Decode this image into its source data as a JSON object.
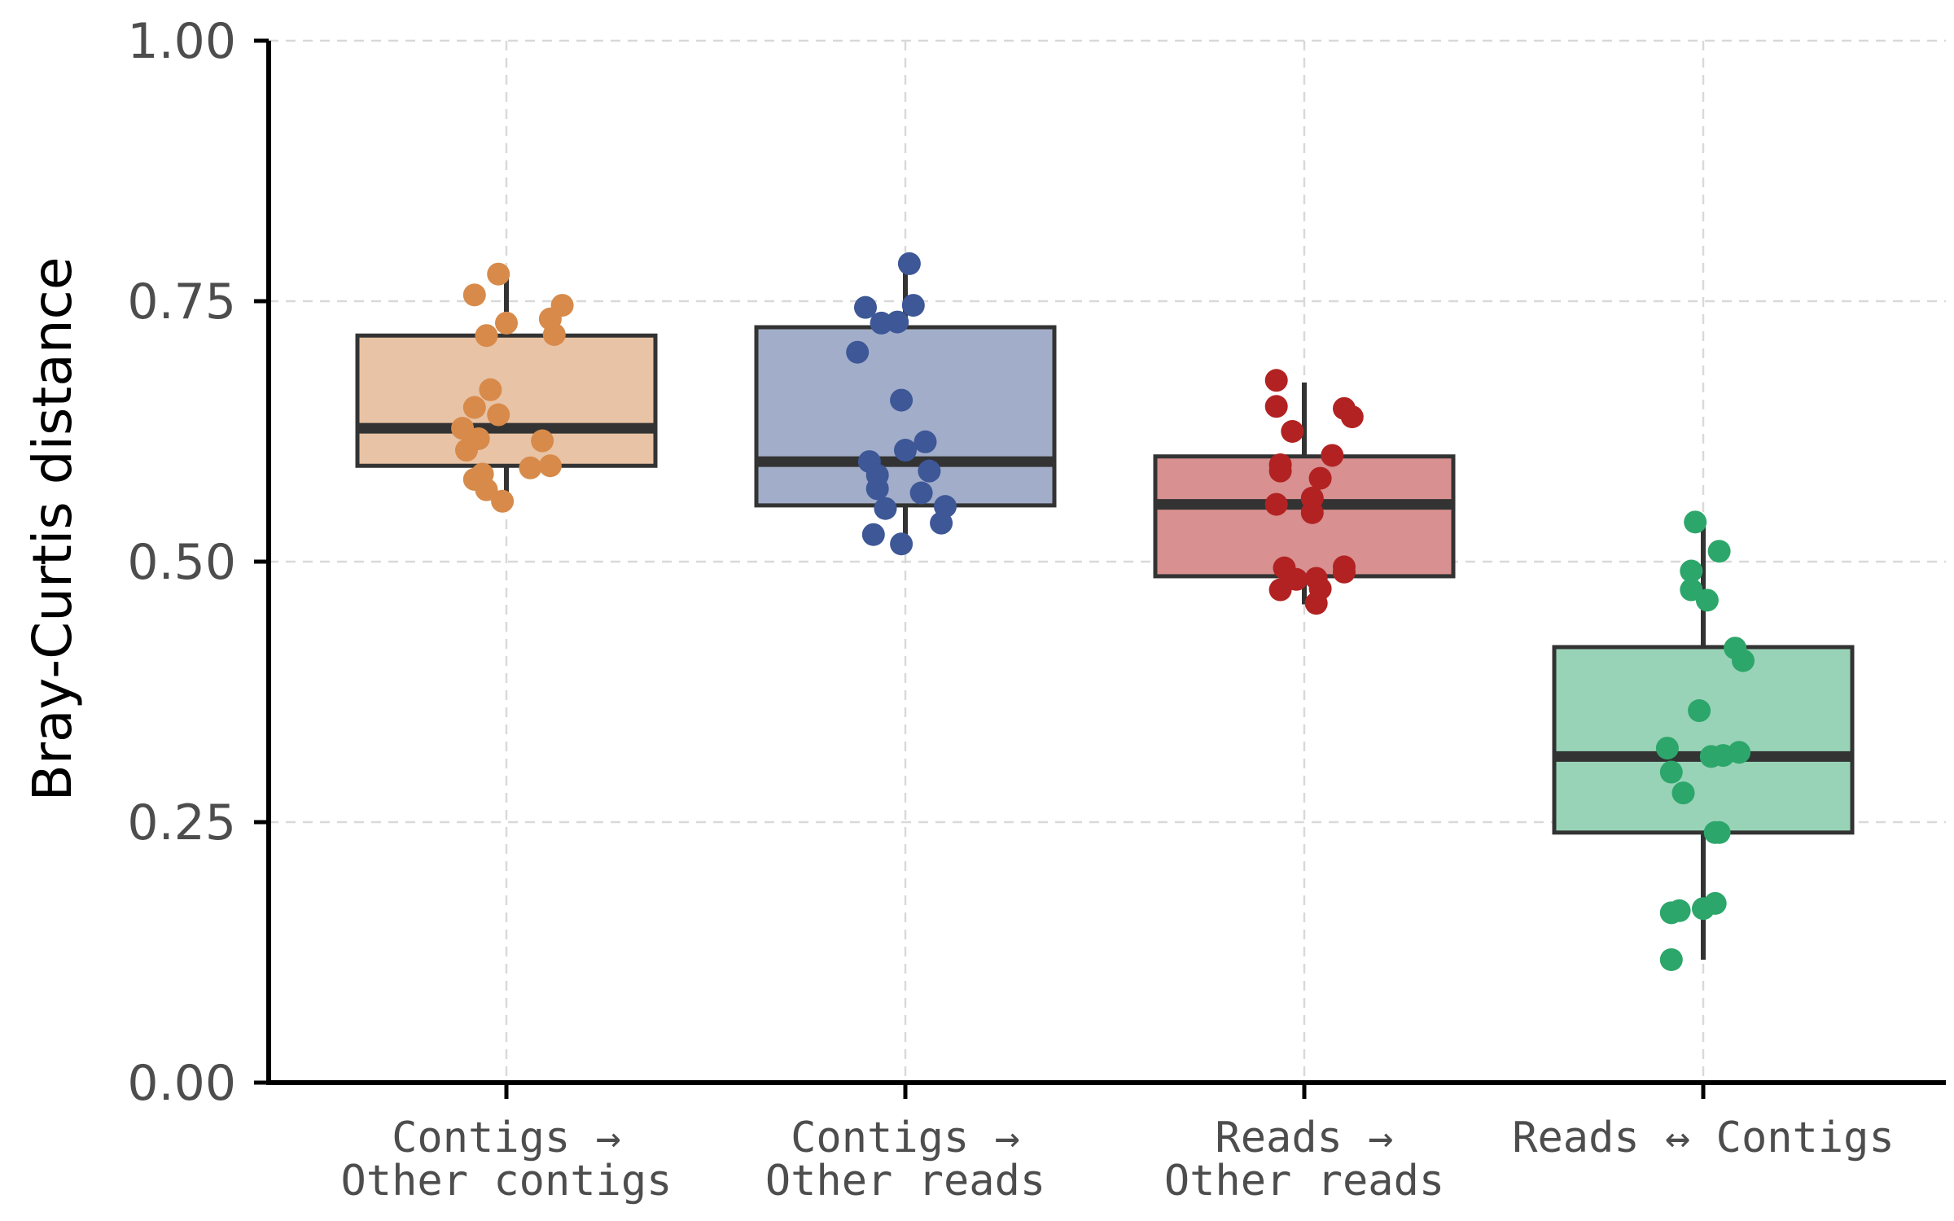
{
  "chart_data": {
    "type": "box",
    "ylabel": "Bray-Curtis distance",
    "xlabel": "",
    "ylim": [
      0,
      1
    ],
    "yticks": [
      "0.00",
      "0.25",
      "0.50",
      "0.75",
      "1.00"
    ],
    "grid": true,
    "categories": [
      {
        "line1": "Contigs →",
        "line2": "Other contigs"
      },
      {
        "line1": "Contigs →",
        "line2": "Other reads"
      },
      {
        "line1": "Reads →",
        "line2": "Other reads"
      },
      {
        "line1": "Reads ↔ Contigs",
        "line2": ""
      }
    ],
    "boxes": [
      {
        "fill": "#e8c3a5",
        "point_color": "#d78a4a",
        "q1": 0.592,
        "median": 0.628,
        "q3": 0.717,
        "whisker_low": 0.557,
        "whisker_high": 0.775,
        "points": [
          [
            -0.02,
            0.776
          ],
          [
            -0.08,
            0.756
          ],
          [
            0.14,
            0.746
          ],
          [
            0.11,
            0.733
          ],
          [
            0.0,
            0.729
          ],
          [
            0.12,
            0.718
          ],
          [
            -0.05,
            0.717
          ],
          [
            -0.04,
            0.665
          ],
          [
            -0.08,
            0.648
          ],
          [
            -0.02,
            0.641
          ],
          [
            -0.11,
            0.628
          ],
          [
            -0.07,
            0.618
          ],
          [
            0.09,
            0.616
          ],
          [
            -0.1,
            0.607
          ],
          [
            0.11,
            0.592
          ],
          [
            0.06,
            0.59
          ],
          [
            -0.06,
            0.584
          ],
          [
            -0.08,
            0.579
          ],
          [
            -0.05,
            0.569
          ],
          [
            -0.01,
            0.558
          ]
        ]
      },
      {
        "fill": "#a2adc9",
        "point_color": "#3d5797",
        "q1": 0.554,
        "median": 0.596,
        "q3": 0.725,
        "whisker_low": 0.516,
        "whisker_high": 0.785,
        "points": [
          [
            0.01,
            0.786
          ],
          [
            -0.1,
            0.744
          ],
          [
            0.02,
            0.746
          ],
          [
            -0.06,
            0.729
          ],
          [
            -0.02,
            0.73
          ],
          [
            -0.12,
            0.701
          ],
          [
            -0.01,
            0.655
          ],
          [
            0.05,
            0.615
          ],
          [
            0.0,
            0.607
          ],
          [
            -0.09,
            0.596
          ],
          [
            -0.07,
            0.583
          ],
          [
            0.06,
            0.587
          ],
          [
            -0.07,
            0.57
          ],
          [
            0.04,
            0.566
          ],
          [
            0.1,
            0.553
          ],
          [
            -0.05,
            0.551
          ],
          [
            0.09,
            0.537
          ],
          [
            -0.08,
            0.526
          ],
          [
            -0.01,
            0.517
          ]
        ]
      },
      {
        "fill": "#d89090",
        "point_color": "#b22222",
        "q1": 0.486,
        "median": 0.555,
        "q3": 0.601,
        "whisker_low": 0.459,
        "whisker_high": 0.672,
        "points": [
          [
            -0.07,
            0.674
          ],
          [
            0.1,
            0.647
          ],
          [
            -0.07,
            0.649
          ],
          [
            0.12,
            0.639
          ],
          [
            -0.03,
            0.625
          ],
          [
            0.07,
            0.602
          ],
          [
            -0.06,
            0.593
          ],
          [
            -0.06,
            0.587
          ],
          [
            0.04,
            0.58
          ],
          [
            0.02,
            0.561
          ],
          [
            -0.07,
            0.555
          ],
          [
            0.02,
            0.547
          ],
          [
            0.1,
            0.495
          ],
          [
            -0.05,
            0.494
          ],
          [
            0.1,
            0.49
          ],
          [
            0.03,
            0.484
          ],
          [
            -0.02,
            0.483
          ],
          [
            0.04,
            0.474
          ],
          [
            -0.06,
            0.473
          ],
          [
            0.03,
            0.46
          ]
        ]
      },
      {
        "fill": "#98d3b7",
        "point_color": "#2ca66a",
        "q1": 0.24,
        "median": 0.313,
        "q3": 0.418,
        "whisker_low": 0.118,
        "whisker_high": 0.536,
        "points": [
          [
            -0.02,
            0.538
          ],
          [
            0.04,
            0.51
          ],
          [
            -0.03,
            0.491
          ],
          [
            -0.03,
            0.473
          ],
          [
            0.01,
            0.463
          ],
          [
            0.08,
            0.417
          ],
          [
            0.1,
            0.405
          ],
          [
            -0.01,
            0.357
          ],
          [
            -0.09,
            0.321
          ],
          [
            0.09,
            0.317
          ],
          [
            0.02,
            0.313
          ],
          [
            0.05,
            0.314
          ],
          [
            -0.08,
            0.298
          ],
          [
            -0.05,
            0.278
          ],
          [
            0.04,
            0.24
          ],
          [
            0.03,
            0.24
          ],
          [
            0.03,
            0.172
          ],
          [
            -0.06,
            0.165
          ],
          [
            0.0,
            0.167
          ],
          [
            -0.08,
            0.163
          ],
          [
            -0.08,
            0.118
          ]
        ]
      }
    ]
  }
}
